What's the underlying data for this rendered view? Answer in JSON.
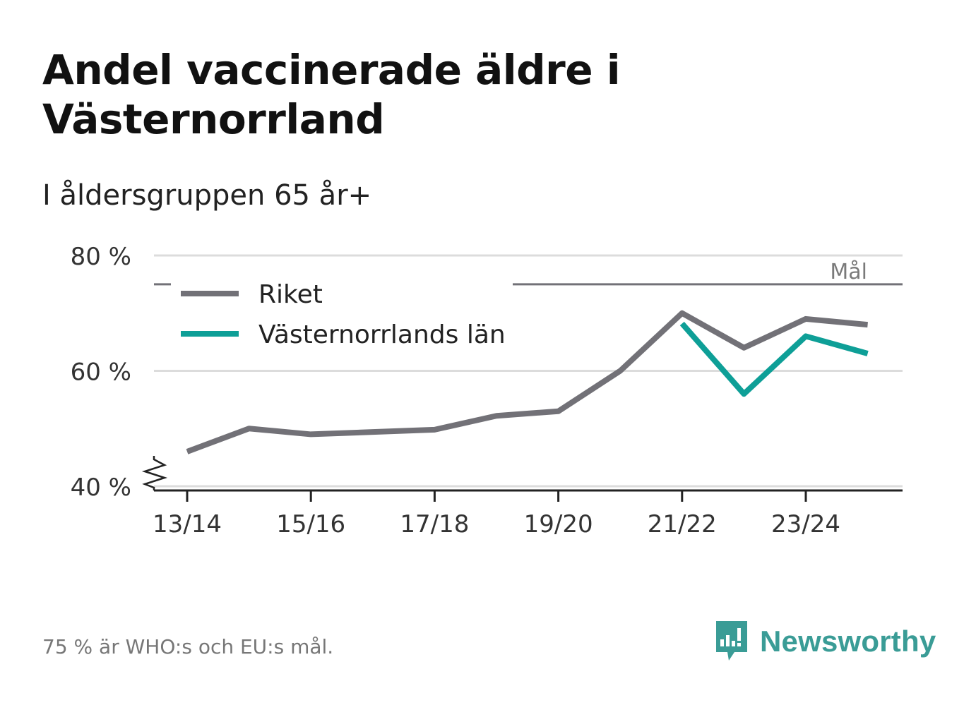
{
  "title": "Andel vaccinerade äldre i Västernorrland",
  "subtitle": "I åldersgruppen 65 år+",
  "footnote": "75 % är WHO:s och EU:s mål.",
  "brand": {
    "name": "Newsworthy",
    "color": "#3a9c96"
  },
  "chart_data": {
    "type": "line",
    "x": [
      "13/14",
      "14/15",
      "15/16",
      "16/17",
      "17/18",
      "18/19",
      "19/20",
      "20/21",
      "21/22",
      "22/23",
      "23/24",
      "24/25"
    ],
    "x_tick_labels": [
      "13/14",
      "15/16",
      "17/18",
      "19/20",
      "21/22",
      "23/24"
    ],
    "y_ticks": [
      40,
      60,
      80
    ],
    "y_tick_labels": [
      "40 %",
      "60 %",
      "80 %"
    ],
    "ylim": [
      40,
      80
    ],
    "y_axis_broken": true,
    "grid": true,
    "legend_position": "top-left",
    "series": [
      {
        "name": "Riket",
        "color": "#727177",
        "values": [
          46,
          50,
          49,
          49.4,
          49.8,
          52.2,
          53,
          60,
          70,
          64,
          69,
          68
        ]
      },
      {
        "name": "Västernorrlands län",
        "color": "#0e9f97",
        "values": [
          null,
          null,
          null,
          null,
          null,
          null,
          null,
          null,
          68.2,
          56,
          66,
          63
        ]
      }
    ],
    "target": {
      "value": 75,
      "label": "Mål",
      "color": "#727177"
    }
  }
}
